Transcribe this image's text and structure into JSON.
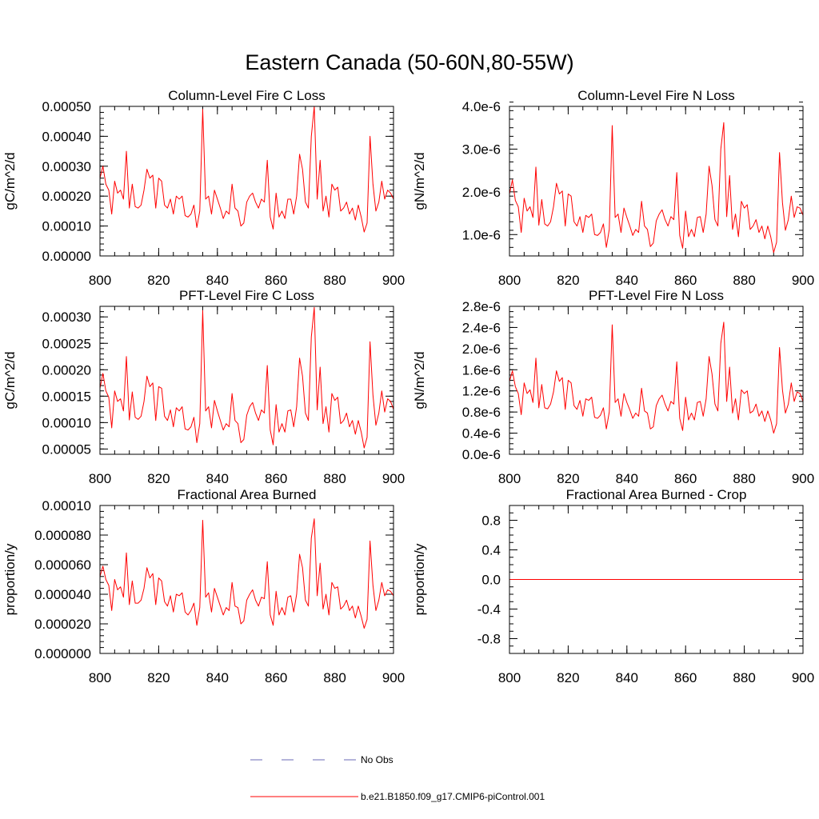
{
  "figure": {
    "title": "Eastern Canada (50-60N,80-55W)"
  },
  "legend": [
    {
      "label": "No Obs",
      "color": "#6a6ab4",
      "style": "dashed"
    },
    {
      "label": "b.e21.B1850.f09_g17.CMIP6-piControl.001",
      "color": "#ff0000",
      "style": "solid"
    }
  ],
  "chart_data": [
    {
      "type": "line",
      "title": "Column-Level Fire C Loss",
      "xlabel": "",
      "ylabel": "gC/m^2/d",
      "xlim": [
        800,
        900
      ],
      "ylim": [
        0,
        0.0005
      ],
      "xticks": [
        800,
        820,
        840,
        860,
        880,
        900
      ],
      "xtick_labels": [
        "800",
        "820",
        "840",
        "860",
        "880",
        "900"
      ],
      "yticks": [
        0,
        0.0001,
        0.0002,
        0.0003,
        0.0004,
        0.0005
      ],
      "ytick_labels": [
        "0.00000",
        "0.00010",
        "0.00020",
        "0.00030",
        "0.00040",
        "0.00050"
      ],
      "minor_y": 2e-05,
      "minor_x": 5,
      "series": [
        {
          "name": "b.e21.B1850.f09_g17.CMIP6-piControl.001",
          "color": "#ff0000",
          "x_start": 800,
          "values": [
            0.00026,
            0.0003,
            0.00024,
            0.00022,
            0.00014,
            0.00025,
            0.00021,
            0.00022,
            0.00019,
            0.00035,
            0.00016,
            0.00024,
            0.000165,
            0.00016,
            0.00017,
            0.00022,
            0.00029,
            0.00026,
            0.00027,
            0.00016,
            0.00026,
            0.00025,
            0.00017,
            0.00016,
            0.00019,
            0.00014,
            0.0002,
            0.00019,
            0.0002,
            0.000135,
            0.00013,
            0.00014,
            0.00017,
            9.5e-05,
            0.00015,
            0.00049,
            0.00019,
            0.0002,
            0.00014,
            0.00022,
            0.00019,
            0.00016,
            0.000125,
            0.00015,
            0.00014,
            0.00024,
            0.00016,
            0.00015,
            0.0001,
            0.00011,
            0.00018,
            0.0002,
            0.00021,
            0.00018,
            0.00016,
            0.00019,
            0.00018,
            0.00032,
            0.00013,
            9e-05,
            0.00021,
            0.00013,
            0.00015,
            0.000125,
            0.00019,
            0.00019,
            0.00014,
            0.0002,
            0.00034,
            0.00029,
            0.00018,
            0.00016,
            0.0004,
            0.0005,
            0.00019,
            0.00032,
            0.00015,
            0.0002,
            0.00013,
            0.00024,
            0.00022,
            0.00023,
            0.00015,
            0.00016,
            0.00018,
            0.00014,
            0.00016,
            0.00012,
            0.00017,
            0.00013,
            8e-05,
            0.00011,
            0.0004,
            0.00024,
            0.00015,
            0.00018,
            0.00025,
            0.00019,
            0.00022,
            0.00021,
            0.00019
          ]
        }
      ]
    },
    {
      "type": "line",
      "title": "Column-Level Fire N Loss",
      "xlabel": "",
      "ylabel": "gN/m^2/d",
      "xlim": [
        800,
        900
      ],
      "ylim": [
        5e-07,
        4e-06
      ],
      "xticks": [
        800,
        820,
        840,
        860,
        880,
        900
      ],
      "xtick_labels": [
        "800",
        "820",
        "840",
        "860",
        "880",
        "900"
      ],
      "yticks": [
        1e-06,
        2e-06,
        3e-06,
        4e-06
      ],
      "ytick_labels": [
        "1.0e-6",
        "2.0e-6",
        "3.0e-6",
        "4.0e-6"
      ],
      "minor_y": 2e-07,
      "minor_x": 5,
      "series": [
        {
          "name": "b.e21.B1850.f09_g17.CMIP6-piControl.001",
          "color": "#ff0000",
          "x_start": 800,
          "values": [
            1.95e-06,
            2.28e-06,
            1.8e-06,
            1.65e-06,
            1.05e-06,
            1.85e-06,
            1.55e-06,
            1.65e-06,
            1.4e-06,
            2.58e-06,
            1.22e-06,
            1.82e-06,
            1.25e-06,
            1.2e-06,
            1.3e-06,
            1.65e-06,
            2.2e-06,
            1.95e-06,
            2.02e-06,
            1.2e-06,
            1.95e-06,
            1.9e-06,
            1.3e-06,
            1.2e-06,
            1.42e-06,
            1.05e-06,
            1.45e-06,
            1.4e-06,
            1.48e-06,
            1e-06,
            9.8e-07,
            1.05e-06,
            1.25e-06,
            7e-07,
            1.12e-06,
            3.55e-06,
            1.4e-06,
            1.48e-06,
            1.05e-06,
            1.62e-06,
            1.4e-06,
            1.2e-06,
            9.8e-07,
            1.12e-06,
            1.05e-06,
            1.78e-06,
            1.2e-06,
            1.12e-06,
            7.2e-07,
            8e-07,
            1.32e-06,
            1.48e-06,
            1.58e-06,
            1.35e-06,
            1.2e-06,
            1.42e-06,
            1.35e-06,
            2.45e-06,
            9.8e-07,
            6.8e-07,
            1.55e-06,
            9.5e-07,
            1.12e-06,
            9.5e-07,
            1.4e-06,
            1.42e-06,
            1.05e-06,
            1.48e-06,
            2.6e-06,
            2.15e-06,
            1.35e-06,
            1.2e-06,
            3e-06,
            3.62e-06,
            1.42e-06,
            2.38e-06,
            1.12e-06,
            1.48e-06,
            9.5e-07,
            1.78e-06,
            1.62e-06,
            1.7e-06,
            1.12e-06,
            1.2e-06,
            1.35e-06,
            1.05e-06,
            1.2e-06,
            9e-07,
            1.2e-06,
            9.5e-07,
            5.8e-07,
            8.2e-07,
            2.92e-06,
            1.75e-06,
            1.1e-06,
            1.35e-06,
            1.9e-06,
            1.4e-06,
            1.65e-06,
            1.62e-06,
            1.45e-06
          ]
        }
      ]
    },
    {
      "type": "line",
      "title": "PFT-Level Fire C Loss",
      "xlabel": "",
      "ylabel": "gC/m^2/d",
      "xlim": [
        800,
        900
      ],
      "ylim": [
        4e-05,
        0.00032
      ],
      "xticks": [
        800,
        820,
        840,
        860,
        880,
        900
      ],
      "xtick_labels": [
        "800",
        "820",
        "840",
        "860",
        "880",
        "900"
      ],
      "yticks": [
        5e-05,
        0.0001,
        0.00015,
        0.0002,
        0.00025,
        0.0003
      ],
      "ytick_labels": [
        "0.00005",
        "0.00010",
        "0.00015",
        "0.00020",
        "0.00025",
        "0.00030"
      ],
      "minor_y": 1e-05,
      "minor_x": 5,
      "series": [
        {
          "name": "b.e21.B1850.f09_g17.CMIP6-piControl.001",
          "color": "#ff0000",
          "x_start": 800,
          "values": [
            0.000165,
            0.000193,
            0.00016,
            0.000148,
            9e-05,
            0.00016,
            0.00014,
            0.000145,
            0.000122,
            0.000225,
            0.000105,
            0.000158,
            0.00011,
            0.000106,
            0.000112,
            0.00014,
            0.000188,
            0.000168,
            0.000175,
            0.000104,
            0.000168,
            0.000165,
            0.000112,
            0.000104,
            0.000124,
            9.2e-05,
            0.000128,
            0.000122,
            0.00013,
            8.8e-05,
            8.6e-05,
            9.2e-05,
            0.00011,
            6.2e-05,
            9.8e-05,
            0.000312,
            0.000122,
            0.00013,
            9e-05,
            0.000142,
            0.000122,
            0.000104,
            8.6e-05,
            9.8e-05,
            9.2e-05,
            0.000155,
            0.000104,
            9.8e-05,
            6.2e-05,
            6.8e-05,
            0.000114,
            0.00013,
            0.000138,
            0.000118,
            0.000104,
            0.000124,
            0.000118,
            0.000208,
            8.6e-05,
            5.8e-05,
            0.000134,
            8.2e-05,
            9.8e-05,
            8.2e-05,
            0.000122,
            0.000124,
            9.2e-05,
            0.00013,
            0.000222,
            0.000188,
            0.000118,
            0.000104,
            0.000262,
            0.000318,
            0.000124,
            0.000205,
            9.8e-05,
            0.00013,
            8.2e-05,
            0.000155,
            0.000142,
            0.000148,
            9.8e-05,
            0.000104,
            0.000118,
            9.2e-05,
            0.000104,
            7.8e-05,
            0.000104,
            8.2e-05,
            5.2e-05,
            7.2e-05,
            0.000253,
            0.000152,
            9.5e-05,
            0.000118,
            0.00016,
            0.00012,
            0.000145,
            0.00014,
            0.000125
          ]
        }
      ]
    },
    {
      "type": "line",
      "title": "PFT-Level Fire N Loss",
      "xlabel": "",
      "ylabel": "gN/m^2/d",
      "xlim": [
        800,
        900
      ],
      "ylim": [
        0,
        2.8e-06
      ],
      "xticks": [
        800,
        820,
        840,
        860,
        880,
        900
      ],
      "xtick_labels": [
        "800",
        "820",
        "840",
        "860",
        "880",
        "900"
      ],
      "yticks": [
        0,
        4e-07,
        8e-07,
        1.2e-06,
        1.6e-06,
        2e-06,
        2.4e-06,
        2.8e-06
      ],
      "ytick_labels": [
        "0.0e-6",
        "0.4e-6",
        "0.8e-6",
        "1.2e-6",
        "1.6e-6",
        "2.0e-6",
        "2.4e-6",
        "2.8e-6"
      ],
      "minor_y": 1e-07,
      "minor_x": 5,
      "series": [
        {
          "name": "b.e21.B1850.f09_g17.CMIP6-piControl.001",
          "color": "#ff0000",
          "x_start": 800,
          "values": [
            1.38e-06,
            1.58e-06,
            1.28e-06,
            1.15e-06,
            7.5e-07,
            1.35e-06,
            1.15e-06,
            1.22e-06,
            9.8e-07,
            1.82e-06,
            8.8e-07,
            1.32e-06,
            8.8e-07,
            8.6e-07,
            9.5e-07,
            1.18e-06,
            1.58e-06,
            1.38e-06,
            1.45e-06,
            8.5e-07,
            1.4e-06,
            1.35e-06,
            9.2e-07,
            8.5e-07,
            1.02e-06,
            7.2e-07,
            1.05e-06,
            1.02e-06,
            1.08e-06,
            7e-07,
            6.8e-07,
            7.4e-07,
            8.8e-07,
            4.8e-07,
            8e-07,
            2.45e-06,
            9.8e-07,
            1.05e-06,
            7.2e-07,
            1.15e-06,
            9.8e-07,
            8.4e-07,
            6.8e-07,
            7.8e-07,
            7.2e-07,
            1.25e-06,
            8.2e-07,
            7.8e-07,
            4.8e-07,
            5.2e-07,
            9.2e-07,
            1.05e-06,
            1.12e-06,
            9.5e-07,
            8.2e-07,
            1e-06,
            9.5e-07,
            1.75e-06,
            6.8e-07,
            4.5e-07,
            1.08e-06,
            6.5e-07,
            7.8e-07,
            6.5e-07,
            9.8e-07,
            1e-06,
            7.2e-07,
            1.05e-06,
            1.85e-06,
            1.52e-06,
            9.5e-07,
            8.2e-07,
            2.1e-06,
            2.5e-06,
            1e-06,
            1.65e-06,
            7.8e-07,
            1.05e-06,
            6.5e-07,
            1.22e-06,
            1.15e-06,
            1.2e-06,
            7.8e-07,
            8.2e-07,
            9.5e-07,
            7.2e-07,
            8.2e-07,
            6.2e-07,
            8.2e-07,
            6.5e-07,
            4e-07,
            5.8e-07,
            2.02e-06,
            1.22e-06,
            7.8e-07,
            9.5e-07,
            1.35e-06,
            1e-06,
            1.18e-06,
            1.15e-06,
            1e-06
          ]
        }
      ]
    },
    {
      "type": "line",
      "title": "Fractional Area Burned",
      "xlabel": "",
      "ylabel": "proportion/y",
      "xlim": [
        800,
        900
      ],
      "ylim": [
        0,
        0.0001
      ],
      "xticks": [
        800,
        820,
        840,
        860,
        880,
        900
      ],
      "xtick_labels": [
        "800",
        "820",
        "840",
        "860",
        "880",
        "900"
      ],
      "yticks": [
        0,
        2e-05,
        4e-05,
        6e-05,
        8e-05,
        0.0001
      ],
      "ytick_labels": [
        "0.000000",
        "0.000020",
        "0.000040",
        "0.000060",
        "0.000080",
        "0.00010"
      ],
      "minor_y": 4e-06,
      "minor_x": 5,
      "series": [
        {
          "name": "b.e21.B1850.f09_g17.CMIP6-piControl.001",
          "color": "#ff0000",
          "x_start": 800,
          "values": [
            5.2e-05,
            5.9e-05,
            5e-05,
            4.6e-05,
            2.9e-05,
            5e-05,
            4.3e-05,
            4.5e-05,
            3.8e-05,
            6.8e-05,
            3.3e-05,
            4.9e-05,
            3.4e-05,
            3.4e-05,
            3.6e-05,
            4.4e-05,
            5.8e-05,
            5.1e-05,
            5.4e-05,
            3.3e-05,
            5.1e-05,
            4.9e-05,
            3.5e-05,
            3.2e-05,
            3.9e-05,
            2.8e-05,
            4e-05,
            3.9e-05,
            4.1e-05,
            2.8e-05,
            2.6e-05,
            2.9e-05,
            3.4e-05,
            1.9e-05,
            3.1e-05,
            9e-05,
            3.8e-05,
            4.1e-05,
            2.8e-05,
            4.4e-05,
            3.8e-05,
            3.2e-05,
            2.6e-05,
            3.1e-05,
            2.9e-05,
            4.8e-05,
            3.2e-05,
            3.1e-05,
            2e-05,
            2.2e-05,
            3.6e-05,
            4e-05,
            4.3e-05,
            3.6e-05,
            3.2e-05,
            3.8e-05,
            3.7e-05,
            6.2e-05,
            2.6e-05,
            1.9e-05,
            4.2e-05,
            2.6e-05,
            3.1e-05,
            2.6e-05,
            3.8e-05,
            3.9e-05,
            2.8e-05,
            4e-05,
            6.7e-05,
            5.8e-05,
            3.6e-05,
            3.2e-05,
            7.8e-05,
            9.1e-05,
            3.9e-05,
            6.1e-05,
            3e-05,
            4e-05,
            2.6e-05,
            4.8e-05,
            4.4e-05,
            4.5e-05,
            3e-05,
            3.2e-05,
            3.6e-05,
            2.9e-05,
            3.2e-05,
            2.4e-05,
            3.2e-05,
            2.5e-05,
            1.7e-05,
            2.3e-05,
            7.6e-05,
            4.6e-05,
            2.9e-05,
            3.6e-05,
            4.8e-05,
            3.9e-05,
            4.3e-05,
            4.2e-05,
            3.9e-05
          ]
        }
      ]
    },
    {
      "type": "line",
      "title": "Fractional Area Burned - Crop",
      "xlabel": "",
      "ylabel": "proportion/y",
      "xlim": [
        800,
        900
      ],
      "ylim": [
        -1,
        1
      ],
      "xticks": [
        800,
        820,
        840,
        860,
        880,
        900
      ],
      "xtick_labels": [
        "800",
        "820",
        "840",
        "860",
        "880",
        "900"
      ],
      "yticks": [
        -0.8,
        -0.4,
        0,
        0.4,
        0.8
      ],
      "ytick_labels": [
        "-0.8",
        "-0.4",
        "0.0",
        "0.4",
        "0.8"
      ],
      "minor_y": 0.1,
      "minor_x": 5,
      "series": [
        {
          "name": "b.e21.B1850.f09_g17.CMIP6-piControl.001",
          "color": "#ff0000",
          "x_start": 800,
          "values": [
            0,
            0,
            0,
            0,
            0,
            0,
            0,
            0,
            0,
            0,
            0,
            0,
            0,
            0,
            0,
            0,
            0,
            0,
            0,
            0,
            0,
            0,
            0,
            0,
            0,
            0,
            0,
            0,
            0,
            0,
            0,
            0,
            0,
            0,
            0,
            0,
            0,
            0,
            0,
            0,
            0,
            0,
            0,
            0,
            0,
            0,
            0,
            0,
            0,
            0,
            0,
            0,
            0,
            0,
            0,
            0,
            0,
            0,
            0,
            0,
            0,
            0,
            0,
            0,
            0,
            0,
            0,
            0,
            0,
            0,
            0,
            0,
            0,
            0,
            0,
            0,
            0,
            0,
            0,
            0,
            0,
            0,
            0,
            0,
            0,
            0,
            0,
            0,
            0,
            0,
            0,
            0,
            0,
            0,
            0,
            0,
            0,
            0,
            0,
            0,
            0
          ]
        }
      ]
    }
  ]
}
